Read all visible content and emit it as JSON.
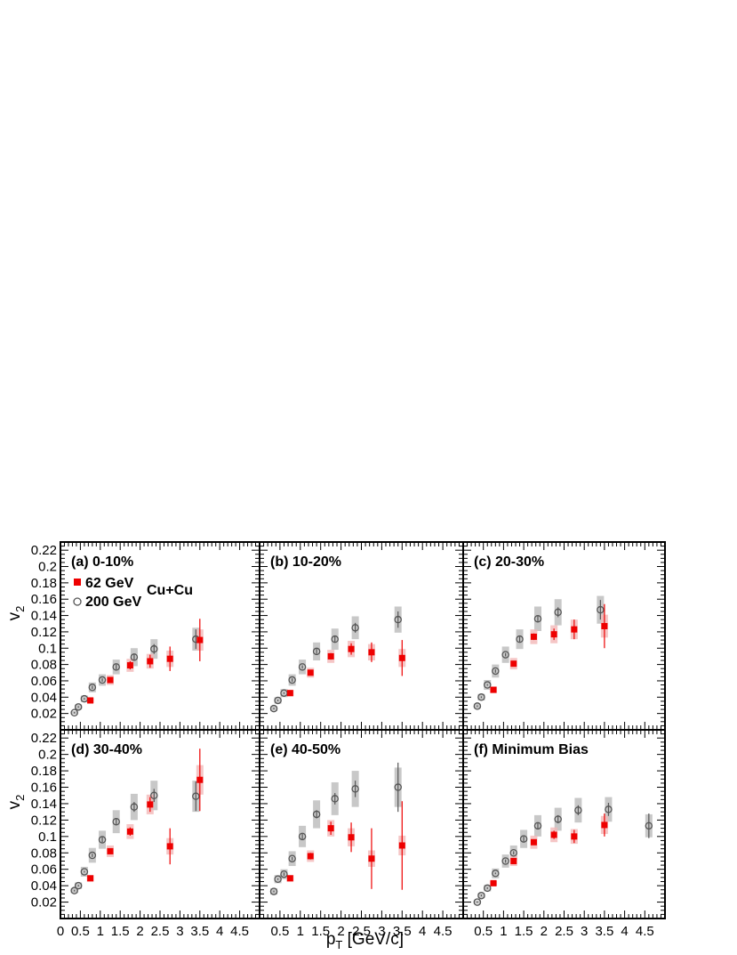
{
  "colors": {
    "s62": "#ee0000",
    "s200": "#555555",
    "syst": "#c8c8c8",
    "syst62": "#f2b8b8"
  },
  "axes": {
    "ylabel_main": "v",
    "ylabel_sub": "2",
    "xlabel_main": "p",
    "xlabel_sub": "T",
    "xlabel_rest": " [GeV/c]"
  },
  "legend": {
    "s62": "62 GeV",
    "s200": "200 GeV",
    "system": "Cu+Cu"
  },
  "chart_data": [
    {
      "type": "scatter",
      "title": "(a) 0-10%",
      "xlim": [
        0,
        5
      ],
      "ylim": [
        0,
        0.23
      ],
      "xticklabels": [
        "0",
        "0.5",
        "1",
        "1.5",
        "2",
        "2.5",
        "3",
        "3.5",
        "4",
        "4.5"
      ],
      "yticklabels": [
        "0.02",
        "0.04",
        "0.06",
        "0.08",
        "0.1",
        "0.12",
        "0.14",
        "0.16",
        "0.18",
        "0.2",
        "0.22"
      ],
      "series": [
        {
          "name": "62 GeV",
          "points": [
            {
              "x": 0.75,
              "y": 0.036,
              "e": 0.002,
              "s": 0.003
            },
            {
              "x": 1.25,
              "y": 0.061,
              "e": 0.003,
              "s": 0.006
            },
            {
              "x": 1.75,
              "y": 0.079,
              "e": 0.005,
              "s": 0.008
            },
            {
              "x": 2.25,
              "y": 0.084,
              "e": 0.008,
              "s": 0.009
            },
            {
              "x": 2.75,
              "y": 0.087,
              "e": 0.015,
              "s": 0.01
            },
            {
              "x": 3.5,
              "y": 0.11,
              "e": 0.026,
              "s": 0.013
            }
          ]
        },
        {
          "name": "200 GeV",
          "points": [
            {
              "x": 0.35,
              "y": 0.021,
              "e": 0.001,
              "s": 0.002
            },
            {
              "x": 0.45,
              "y": 0.028,
              "e": 0.001,
              "s": 0.003
            },
            {
              "x": 0.6,
              "y": 0.038,
              "e": 0.001,
              "s": 0.004
            },
            {
              "x": 0.8,
              "y": 0.052,
              "e": 0.002,
              "s": 0.006
            },
            {
              "x": 1.05,
              "y": 0.061,
              "e": 0.002,
              "s": 0.007
            },
            {
              "x": 1.4,
              "y": 0.077,
              "e": 0.003,
              "s": 0.009
            },
            {
              "x": 1.85,
              "y": 0.089,
              "e": 0.004,
              "s": 0.011
            },
            {
              "x": 2.35,
              "y": 0.099,
              "e": 0.006,
              "s": 0.012
            },
            {
              "x": 3.4,
              "y": 0.111,
              "e": 0.012,
              "s": 0.014
            }
          ]
        }
      ]
    },
    {
      "type": "scatter",
      "title": "(b) 10-20%",
      "xlim": [
        0,
        5
      ],
      "ylim": [
        0,
        0.23
      ],
      "series": [
        {
          "name": "62 GeV",
          "points": [
            {
              "x": 0.75,
              "y": 0.045,
              "e": 0.002,
              "s": 0.004
            },
            {
              "x": 1.25,
              "y": 0.07,
              "e": 0.003,
              "s": 0.006
            },
            {
              "x": 1.75,
              "y": 0.09,
              "e": 0.004,
              "s": 0.008
            },
            {
              "x": 2.25,
              "y": 0.099,
              "e": 0.007,
              "s": 0.01
            },
            {
              "x": 2.75,
              "y": 0.095,
              "e": 0.012,
              "s": 0.01
            },
            {
              "x": 3.5,
              "y": 0.088,
              "e": 0.022,
              "s": 0.011
            }
          ]
        },
        {
          "name": "200 GeV",
          "points": [
            {
              "x": 0.35,
              "y": 0.026,
              "e": 0.001,
              "s": 0.003
            },
            {
              "x": 0.45,
              "y": 0.036,
              "e": 0.001,
              "s": 0.004
            },
            {
              "x": 0.6,
              "y": 0.045,
              "e": 0.001,
              "s": 0.005
            },
            {
              "x": 0.8,
              "y": 0.061,
              "e": 0.002,
              "s": 0.007
            },
            {
              "x": 1.05,
              "y": 0.077,
              "e": 0.002,
              "s": 0.009
            },
            {
              "x": 1.4,
              "y": 0.096,
              "e": 0.003,
              "s": 0.011
            },
            {
              "x": 1.85,
              "y": 0.111,
              "e": 0.004,
              "s": 0.013
            },
            {
              "x": 2.35,
              "y": 0.125,
              "e": 0.006,
              "s": 0.014
            },
            {
              "x": 3.4,
              "y": 0.135,
              "e": 0.01,
              "s": 0.016
            }
          ]
        }
      ]
    },
    {
      "type": "scatter",
      "title": "(c) 20-30%",
      "xlim": [
        0,
        5
      ],
      "ylim": [
        0,
        0.23
      ],
      "series": [
        {
          "name": "62 GeV",
          "points": [
            {
              "x": 0.75,
              "y": 0.049,
              "e": 0.002,
              "s": 0.004
            },
            {
              "x": 1.25,
              "y": 0.081,
              "e": 0.003,
              "s": 0.007
            },
            {
              "x": 1.75,
              "y": 0.114,
              "e": 0.004,
              "s": 0.009
            },
            {
              "x": 2.25,
              "y": 0.117,
              "e": 0.007,
              "s": 0.011
            },
            {
              "x": 2.75,
              "y": 0.123,
              "e": 0.012,
              "s": 0.012
            },
            {
              "x": 3.5,
              "y": 0.127,
              "e": 0.027,
              "s": 0.014
            }
          ]
        },
        {
          "name": "200 GeV",
          "points": [
            {
              "x": 0.35,
              "y": 0.029,
              "e": 0.001,
              "s": 0.003
            },
            {
              "x": 0.45,
              "y": 0.04,
              "e": 0.001,
              "s": 0.004
            },
            {
              "x": 0.6,
              "y": 0.055,
              "e": 0.001,
              "s": 0.006
            },
            {
              "x": 0.8,
              "y": 0.072,
              "e": 0.002,
              "s": 0.008
            },
            {
              "x": 1.05,
              "y": 0.092,
              "e": 0.002,
              "s": 0.01
            },
            {
              "x": 1.4,
              "y": 0.111,
              "e": 0.003,
              "s": 0.012
            },
            {
              "x": 1.85,
              "y": 0.136,
              "e": 0.004,
              "s": 0.015
            },
            {
              "x": 2.35,
              "y": 0.144,
              "e": 0.006,
              "s": 0.016
            },
            {
              "x": 3.4,
              "y": 0.147,
              "e": 0.012,
              "s": 0.017
            }
          ]
        }
      ]
    },
    {
      "type": "scatter",
      "title": "(d) 30-40%",
      "xlim": [
        0,
        5
      ],
      "ylim": [
        0,
        0.23
      ],
      "series": [
        {
          "name": "62 GeV",
          "points": [
            {
              "x": 0.75,
              "y": 0.049,
              "e": 0.002,
              "s": 0.004
            },
            {
              "x": 1.25,
              "y": 0.082,
              "e": 0.003,
              "s": 0.007
            },
            {
              "x": 1.75,
              "y": 0.106,
              "e": 0.005,
              "s": 0.009
            },
            {
              "x": 2.25,
              "y": 0.139,
              "e": 0.009,
              "s": 0.012
            },
            {
              "x": 2.75,
              "y": 0.088,
              "e": 0.022,
              "s": 0.01
            },
            {
              "x": 3.5,
              "y": 0.169,
              "e": 0.038,
              "s": 0.018
            }
          ]
        },
        {
          "name": "200 GeV",
          "points": [
            {
              "x": 0.35,
              "y": 0.034,
              "e": 0.001,
              "s": 0.003
            },
            {
              "x": 0.45,
              "y": 0.04,
              "e": 0.001,
              "s": 0.004
            },
            {
              "x": 0.6,
              "y": 0.057,
              "e": 0.001,
              "s": 0.006
            },
            {
              "x": 0.8,
              "y": 0.077,
              "e": 0.002,
              "s": 0.009
            },
            {
              "x": 1.05,
              "y": 0.096,
              "e": 0.003,
              "s": 0.011
            },
            {
              "x": 1.4,
              "y": 0.118,
              "e": 0.004,
              "s": 0.014
            },
            {
              "x": 1.85,
              "y": 0.136,
              "e": 0.006,
              "s": 0.016
            },
            {
              "x": 2.35,
              "y": 0.15,
              "e": 0.008,
              "s": 0.018
            },
            {
              "x": 3.4,
              "y": 0.149,
              "e": 0.018,
              "s": 0.019
            }
          ]
        }
      ]
    },
    {
      "type": "scatter",
      "title": "(e) 40-50%",
      "xlim": [
        0,
        5
      ],
      "ylim": [
        0,
        0.23
      ],
      "series": [
        {
          "name": "62 GeV",
          "points": [
            {
              "x": 0.75,
              "y": 0.049,
              "e": 0.003,
              "s": 0.004
            },
            {
              "x": 1.25,
              "y": 0.076,
              "e": 0.004,
              "s": 0.007
            },
            {
              "x": 1.75,
              "y": 0.11,
              "e": 0.008,
              "s": 0.01
            },
            {
              "x": 2.25,
              "y": 0.099,
              "e": 0.018,
              "s": 0.011
            },
            {
              "x": 2.75,
              "y": 0.073,
              "e": 0.037,
              "s": 0.01
            },
            {
              "x": 3.5,
              "y": 0.089,
              "e": 0.054,
              "s": 0.012
            }
          ]
        },
        {
          "name": "200 GeV",
          "points": [
            {
              "x": 0.35,
              "y": 0.033,
              "e": 0.001,
              "s": 0.004
            },
            {
              "x": 0.45,
              "y": 0.048,
              "e": 0.001,
              "s": 0.005
            },
            {
              "x": 0.6,
              "y": 0.054,
              "e": 0.002,
              "s": 0.006
            },
            {
              "x": 0.8,
              "y": 0.073,
              "e": 0.002,
              "s": 0.009
            },
            {
              "x": 1.05,
              "y": 0.1,
              "e": 0.003,
              "s": 0.013
            },
            {
              "x": 1.4,
              "y": 0.127,
              "e": 0.005,
              "s": 0.017
            },
            {
              "x": 1.85,
              "y": 0.146,
              "e": 0.007,
              "s": 0.02
            },
            {
              "x": 2.35,
              "y": 0.158,
              "e": 0.01,
              "s": 0.022
            },
            {
              "x": 3.4,
              "y": 0.16,
              "e": 0.03,
              "s": 0.024
            }
          ]
        }
      ]
    },
    {
      "type": "scatter",
      "title": "(f) Minimum Bias",
      "xlim": [
        0,
        5
      ],
      "ylim": [
        0,
        0.23
      ],
      "series": [
        {
          "name": "62 GeV",
          "points": [
            {
              "x": 0.75,
              "y": 0.043,
              "e": 0.001,
              "s": 0.003
            },
            {
              "x": 1.25,
              "y": 0.07,
              "e": 0.002,
              "s": 0.006
            },
            {
              "x": 1.75,
              "y": 0.093,
              "e": 0.003,
              "s": 0.008
            },
            {
              "x": 2.25,
              "y": 0.102,
              "e": 0.005,
              "s": 0.009
            },
            {
              "x": 2.75,
              "y": 0.1,
              "e": 0.008,
              "s": 0.009
            },
            {
              "x": 3.5,
              "y": 0.114,
              "e": 0.014,
              "s": 0.011
            }
          ]
        },
        {
          "name": "200 GeV",
          "points": [
            {
              "x": 0.35,
              "y": 0.02,
              "e": 0.001,
              "s": 0.002
            },
            {
              "x": 0.45,
              "y": 0.028,
              "e": 0.001,
              "s": 0.003
            },
            {
              "x": 0.6,
              "y": 0.037,
              "e": 0.001,
              "s": 0.004
            },
            {
              "x": 0.8,
              "y": 0.055,
              "e": 0.001,
              "s": 0.006
            },
            {
              "x": 1.05,
              "y": 0.07,
              "e": 0.002,
              "s": 0.008
            },
            {
              "x": 1.25,
              "y": 0.08,
              "e": 0.002,
              "s": 0.009
            },
            {
              "x": 1.5,
              "y": 0.097,
              "e": 0.003,
              "s": 0.011
            },
            {
              "x": 1.85,
              "y": 0.113,
              "e": 0.004,
              "s": 0.013
            },
            {
              "x": 2.35,
              "y": 0.121,
              "e": 0.005,
              "s": 0.014
            },
            {
              "x": 2.85,
              "y": 0.132,
              "e": 0.006,
              "s": 0.015
            },
            {
              "x": 3.6,
              "y": 0.133,
              "e": 0.008,
              "s": 0.015
            },
            {
              "x": 4.6,
              "y": 0.113,
              "e": 0.015,
              "s": 0.014
            }
          ]
        }
      ]
    }
  ]
}
